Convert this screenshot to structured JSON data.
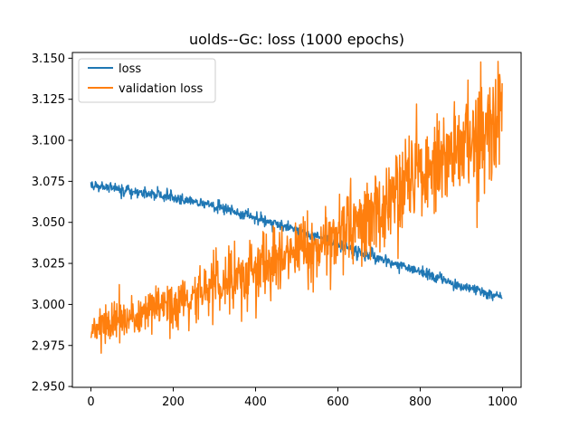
{
  "chart_data": {
    "type": "line",
    "title": "uolds--Gc: loss (1000 epochs)",
    "xlabel": "",
    "ylabel": "",
    "xlim": [
      -45,
      1045
    ],
    "ylim": [
      2.9495,
      3.1535
    ],
    "xticks": [
      0,
      200,
      400,
      600,
      800,
      1000
    ],
    "xtick_labels": [
      "0",
      "200",
      "400",
      "600",
      "800",
      "1000"
    ],
    "yticks": [
      2.95,
      2.975,
      3.0,
      3.025,
      3.05,
      3.075,
      3.1,
      3.125,
      3.15
    ],
    "ytick_labels": [
      "2.950",
      "2.975",
      "3.000",
      "3.025",
      "3.050",
      "3.075",
      "3.100",
      "3.125",
      "3.150"
    ],
    "grid": false,
    "legend_position": "top-left",
    "series": [
      {
        "name": "loss",
        "color": "#1f77b4",
        "model": "linear_trend_with_noise",
        "x": [
          0,
          100,
          200,
          300,
          400,
          500,
          600,
          700,
          800,
          900,
          1000
        ],
        "values": [
          3.073,
          3.069,
          3.065,
          3.06,
          3.053,
          3.045,
          3.037,
          3.028,
          3.02,
          3.011,
          3.004
        ]
      },
      {
        "name": "validation loss",
        "color": "#ff7f0e",
        "model": "noisy_increasing_trend",
        "x": [
          0,
          100,
          200,
          300,
          400,
          500,
          600,
          700,
          800,
          900,
          1000
        ],
        "values": [
          2.985,
          2.992,
          3.0,
          3.01,
          3.02,
          3.03,
          3.045,
          3.06,
          3.08,
          3.095,
          3.12
        ]
      }
    ]
  }
}
